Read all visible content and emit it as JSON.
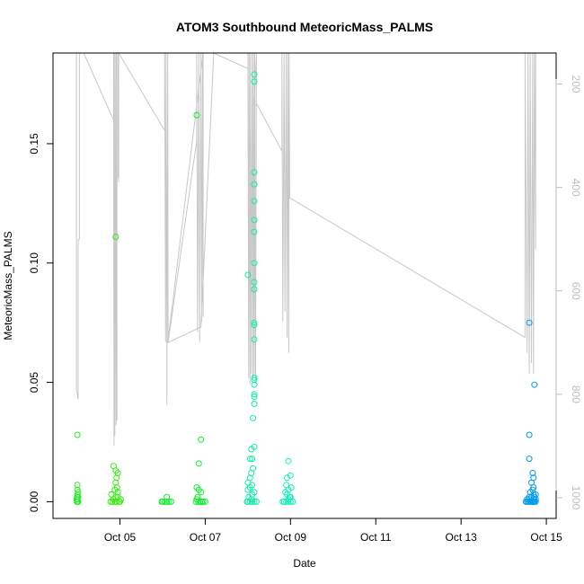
{
  "chart_data": {
    "type": "scatter",
    "title": "ATOM3 Southbound MeteoricMass_PALMS",
    "xlabel": "Date",
    "ylabel": "MeteoricMass_PALMS",
    "x_ticks": [
      {
        "day": 5,
        "label": "Oct 05"
      },
      {
        "day": 7,
        "label": "Oct 07"
      },
      {
        "day": 9,
        "label": "Oct 09"
      },
      {
        "day": 11,
        "label": "Oct 11"
      },
      {
        "day": 13,
        "label": "Oct 13"
      },
      {
        "day": 15,
        "label": "Oct 15"
      }
    ],
    "xlim": [
      3.43,
      15.23
    ],
    "ylim": [
      -0.007,
      0.188
    ],
    "y_ticks": [
      {
        "value": 0.0,
        "label": "0.00"
      },
      {
        "value": 0.05,
        "label": "0.05"
      },
      {
        "value": 0.1,
        "label": "0.10"
      },
      {
        "value": 0.15,
        "label": "0.15"
      }
    ],
    "y2_ticks": [
      {
        "value": 200,
        "label": "200"
      },
      {
        "value": 400,
        "label": "400"
      },
      {
        "value": 600,
        "label": "600"
      },
      {
        "value": 800,
        "label": "800"
      },
      {
        "value": 1000,
        "label": "1000"
      }
    ],
    "y2lim": [
      1040,
      140
    ],
    "y2_reversed": true,
    "grid": false,
    "series": [
      {
        "color": "#22ee22",
        "points": [
          [
            4.0,
            0.028
          ],
          [
            4.0,
            0.007
          ],
          [
            4.0,
            0.005
          ],
          [
            4.0,
            0.003
          ],
          [
            4.0,
            0.002
          ],
          [
            4.0,
            0.001
          ],
          [
            4.0,
            0.0
          ],
          [
            4.02,
            0.004
          ],
          [
            4.02,
            0.002
          ],
          [
            4.02,
            0.0
          ],
          [
            3.98,
            0.001
          ],
          [
            3.99,
            0.0
          ]
        ]
      },
      {
        "color": "#33ee11",
        "points": [
          [
            4.9,
            0.111
          ],
          [
            4.85,
            0.015
          ],
          [
            4.9,
            0.013
          ],
          [
            4.95,
            0.012
          ],
          [
            4.92,
            0.01
          ],
          [
            4.9,
            0.008
          ],
          [
            4.93,
            0.006
          ],
          [
            4.88,
            0.005
          ],
          [
            4.95,
            0.004
          ],
          [
            4.8,
            0.003
          ],
          [
            4.9,
            0.002
          ],
          [
            4.85,
            0.001
          ],
          [
            4.82,
            0.0
          ],
          [
            4.88,
            0.0
          ],
          [
            4.92,
            0.0
          ],
          [
            4.98,
            0.0
          ],
          [
            5.0,
            0.0
          ],
          [
            5.02,
            0.001
          ],
          [
            4.78,
            0.0
          ],
          [
            4.95,
            0.002
          ]
        ]
      },
      {
        "color": "#11ee33",
        "points": [
          [
            6.1,
            0.002
          ],
          [
            6.0,
            0.0
          ],
          [
            6.05,
            0.0
          ],
          [
            6.1,
            0.0
          ],
          [
            6.15,
            0.0
          ],
          [
            6.2,
            0.0
          ],
          [
            5.98,
            0.0
          ],
          [
            6.8,
            0.162
          ],
          [
            6.9,
            0.026
          ],
          [
            6.85,
            0.016
          ],
          [
            6.8,
            0.006
          ],
          [
            6.85,
            0.005
          ],
          [
            6.9,
            0.004
          ],
          [
            6.82,
            0.002
          ],
          [
            6.8,
            0.001
          ],
          [
            6.88,
            0.0
          ],
          [
            6.92,
            0.0
          ],
          [
            6.95,
            0.0
          ],
          [
            7.0,
            0.0
          ],
          [
            6.78,
            0.0
          ],
          [
            6.84,
            0.0
          ]
        ]
      },
      {
        "color": "#11eeaa",
        "points": [
          [
            8.15,
            0.179
          ],
          [
            8.15,
            0.176
          ],
          [
            8.15,
            0.138
          ],
          [
            8.15,
            0.133
          ],
          [
            8.15,
            0.126
          ],
          [
            8.15,
            0.118
          ],
          [
            8.15,
            0.113
          ],
          [
            8.15,
            0.1
          ],
          [
            8.0,
            0.095
          ],
          [
            8.15,
            0.092
          ],
          [
            8.15,
            0.089
          ],
          [
            8.15,
            0.075
          ],
          [
            8.15,
            0.074
          ],
          [
            8.15,
            0.068
          ],
          [
            8.15,
            0.052
          ],
          [
            8.15,
            0.051
          ],
          [
            8.15,
            0.049
          ],
          [
            8.15,
            0.045
          ],
          [
            8.15,
            0.044
          ],
          [
            8.15,
            0.041
          ],
          [
            8.12,
            0.035
          ],
          [
            8.15,
            0.023
          ],
          [
            8.08,
            0.022
          ],
          [
            8.05,
            0.018
          ],
          [
            8.1,
            0.018
          ],
          [
            8.12,
            0.014
          ],
          [
            8.08,
            0.012
          ],
          [
            8.05,
            0.01
          ],
          [
            8.0,
            0.008
          ],
          [
            8.1,
            0.007
          ],
          [
            8.05,
            0.006
          ],
          [
            8.0,
            0.005
          ],
          [
            8.15,
            0.004
          ],
          [
            8.1,
            0.003
          ],
          [
            8.02,
            0.002
          ],
          [
            8.08,
            0.001
          ],
          [
            8.0,
            0.0
          ],
          [
            8.05,
            0.0
          ],
          [
            8.1,
            0.0
          ],
          [
            8.15,
            0.0
          ],
          [
            8.2,
            0.0
          ],
          [
            7.98,
            0.0
          ]
        ]
      },
      {
        "color": "#11eebb",
        "points": [
          [
            8.95,
            0.017
          ],
          [
            9.0,
            0.011
          ],
          [
            8.92,
            0.01
          ],
          [
            8.9,
            0.007
          ],
          [
            9.02,
            0.006
          ],
          [
            8.95,
            0.005
          ],
          [
            8.88,
            0.004
          ],
          [
            8.92,
            0.003
          ],
          [
            9.0,
            0.002
          ],
          [
            8.95,
            0.001
          ],
          [
            8.85,
            0.0
          ],
          [
            8.9,
            0.0
          ],
          [
            8.95,
            0.0
          ],
          [
            9.0,
            0.0
          ],
          [
            9.05,
            0.0
          ],
          [
            8.82,
            0.0
          ],
          [
            8.98,
            0.002
          ]
        ]
      },
      {
        "color": "#0099ee",
        "points": [
          [
            14.6,
            0.075
          ],
          [
            14.72,
            0.049
          ],
          [
            14.6,
            0.028
          ],
          [
            14.6,
            0.018
          ],
          [
            14.68,
            0.012
          ],
          [
            14.7,
            0.01
          ],
          [
            14.65,
            0.008
          ],
          [
            14.7,
            0.006
          ],
          [
            14.68,
            0.005
          ],
          [
            14.62,
            0.004
          ],
          [
            14.7,
            0.003
          ],
          [
            14.75,
            0.003
          ],
          [
            14.6,
            0.002
          ],
          [
            14.65,
            0.002
          ],
          [
            14.72,
            0.002
          ],
          [
            14.55,
            0.001
          ],
          [
            14.6,
            0.001
          ],
          [
            14.7,
            0.001
          ],
          [
            14.75,
            0.001
          ],
          [
            14.52,
            0.0
          ],
          [
            14.55,
            0.0
          ],
          [
            14.58,
            0.0
          ],
          [
            14.62,
            0.0
          ],
          [
            14.65,
            0.0
          ],
          [
            14.68,
            0.0
          ],
          [
            14.7,
            0.0
          ],
          [
            14.72,
            0.0
          ],
          [
            14.75,
            0.0
          ]
        ]
      }
    ],
    "pressure_trace": {
      "color": "#c8c8c8",
      "points": [
        [
          3.98,
          100
        ],
        [
          3.98,
          790
        ],
        [
          4.02,
          810
        ],
        [
          4.02,
          500
        ],
        [
          4.05,
          500
        ],
        [
          4.05,
          120
        ],
        [
          4.15,
          120
        ],
        [
          4.15,
          120
        ],
        [
          4.85,
          270
        ],
        [
          4.85,
          100
        ],
        [
          4.86,
          900
        ],
        [
          4.87,
          100
        ],
        [
          4.88,
          880
        ],
        [
          4.9,
          100
        ],
        [
          4.91,
          860
        ],
        [
          4.92,
          100
        ],
        [
          4.93,
          850
        ],
        [
          4.93,
          380
        ],
        [
          4.95,
          380
        ],
        [
          4.95,
          100
        ],
        [
          4.97,
          390
        ],
        [
          4.97,
          120
        ],
        [
          6.05,
          290
        ],
        [
          6.05,
          100
        ],
        [
          6.07,
          700
        ],
        [
          6.08,
          100
        ],
        [
          6.1,
          690
        ],
        [
          6.1,
          820
        ],
        [
          6.12,
          100
        ],
        [
          6.13,
          700
        ],
        [
          6.8,
          310
        ],
        [
          6.8,
          100
        ],
        [
          6.82,
          680
        ],
        [
          6.85,
          100
        ],
        [
          6.87,
          700
        ],
        [
          6.9,
          100
        ],
        [
          6.92,
          660
        ],
        [
          6.94,
          100
        ],
        [
          6.95,
          650
        ],
        [
          6.95,
          100
        ],
        [
          6.12,
          700
        ],
        [
          6.9,
          670
        ],
        [
          7.2,
          100
        ],
        [
          8.0,
          170
        ],
        [
          8.0,
          100
        ],
        [
          8.02,
          770
        ],
        [
          8.03,
          100
        ],
        [
          8.05,
          780
        ],
        [
          8.06,
          100
        ],
        [
          8.08,
          760
        ],
        [
          8.1,
          100
        ],
        [
          8.12,
          770
        ],
        [
          8.13,
          100
        ],
        [
          8.15,
          760
        ],
        [
          8.16,
          100
        ],
        [
          8.18,
          780
        ],
        [
          8.2,
          100
        ],
        [
          8.15,
          240
        ],
        [
          8.22,
          240
        ],
        [
          8.8,
          330
        ],
        [
          8.8,
          100
        ],
        [
          8.82,
          660
        ],
        [
          8.85,
          100
        ],
        [
          8.87,
          640
        ],
        [
          8.9,
          100
        ],
        [
          8.92,
          690
        ],
        [
          8.94,
          100
        ],
        [
          8.96,
          720
        ],
        [
          8.97,
          100
        ],
        [
          8.98,
          420
        ],
        [
          14.5,
          690
        ],
        [
          14.5,
          100
        ],
        [
          14.55,
          720
        ],
        [
          14.57,
          100
        ],
        [
          14.6,
          760
        ],
        [
          14.62,
          100
        ],
        [
          14.65,
          740
        ],
        [
          14.68,
          100
        ],
        [
          14.7,
          760
        ],
        [
          14.72,
          100
        ],
        [
          14.75,
          520
        ],
        [
          14.75,
          100
        ]
      ]
    }
  }
}
